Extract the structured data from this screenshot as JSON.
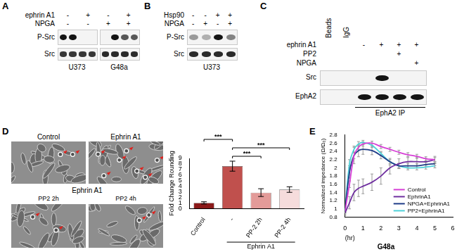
{
  "panels": {
    "A": {
      "label": "A",
      "conditions": [
        {
          "name": "ephrin A1",
          "signs": [
            "-",
            "+",
            "-",
            "+"
          ]
        },
        {
          "name": "NPGA",
          "signs": [
            "-",
            "-",
            "+",
            "+"
          ]
        }
      ],
      "rows": [
        "P-Src",
        "Src"
      ],
      "cell_lines": [
        "U373",
        "G48a"
      ]
    },
    "B": {
      "label": "B",
      "conditions": [
        {
          "name": "Hsp90",
          "signs": [
            "-",
            "-",
            "+",
            "+"
          ]
        },
        {
          "name": "NPGA",
          "signs": [
            "-",
            "+",
            "-",
            "+"
          ]
        }
      ],
      "rows": [
        "P-Src",
        "Src"
      ],
      "cell_lines": [
        "U373"
      ]
    },
    "C": {
      "label": "C",
      "lanes": [
        "Beads",
        "IgG"
      ],
      "conditions": [
        {
          "name": "ephrin A1",
          "signs": [
            null,
            null,
            "-",
            "+",
            "+",
            "+"
          ]
        },
        {
          "name": "PP2",
          "signs": [
            null,
            null,
            null,
            null,
            "+",
            null
          ]
        },
        {
          "name": "NPGA",
          "signs": [
            null,
            null,
            null,
            null,
            null,
            "+"
          ]
        }
      ],
      "rows": [
        "Src",
        "EphA2"
      ],
      "ip": "EphA2 IP"
    },
    "D": {
      "label": "D",
      "top_labels": [
        "Control",
        "Ephrin A1"
      ],
      "group_label": "Ephrin A1",
      "bottom_labels": [
        "PP2 2h",
        "PP2 4h"
      ]
    },
    "E": {
      "label": "E"
    }
  },
  "chart_data": [
    {
      "type": "bar",
      "ylabel": "Fold Change Rounding",
      "categories": [
        "Control",
        "-",
        "PP-2 2h",
        "PP-2 4h"
      ],
      "values": [
        1.0,
        7.6,
        2.85,
        3.4
      ],
      "errors": [
        0.2,
        0.9,
        0.7,
        0.5
      ],
      "colors": [
        "#8b1a1a",
        "#c0504d",
        "#e39b99",
        "#f6dcdc"
      ],
      "ylim": [
        0,
        9
      ],
      "yticks": [
        0,
        1,
        2,
        3,
        4,
        5,
        6,
        7,
        8,
        9
      ],
      "grid": false,
      "group": {
        "label": "Ephrin A1",
        "categories": [
          "-",
          "PP-2 2h",
          "PP-2 4h"
        ]
      },
      "significance": [
        {
          "between": [
            "Control",
            "-"
          ],
          "label": "***"
        },
        {
          "between": [
            "-",
            "PP-2 4h"
          ],
          "label": "***"
        },
        {
          "between": [
            "-",
            "PP-2 2h"
          ],
          "label": "***"
        }
      ]
    },
    {
      "type": "line",
      "title": "G48a",
      "xlabel": "(hr)",
      "ylabel": "Normalized impedance (Ω/Ω₀)",
      "x": [
        0,
        0.25,
        0.5,
        0.75,
        1,
        1.5,
        2,
        2.5,
        3,
        3.5,
        4,
        4.5,
        5
      ],
      "series": [
        {
          "name": "Control",
          "color": "#d63fd6",
          "values": [
            0.95,
            1.6,
            2.3,
            2.5,
            2.58,
            2.6,
            2.52,
            2.45,
            2.38,
            2.32,
            2.28,
            2.22,
            2.2
          ],
          "errors": [
            0.05,
            0.08,
            0.08,
            0.06,
            0.05,
            0.05,
            0.05,
            0.05,
            0.05,
            0.05,
            0.05,
            0.05,
            0.05
          ]
        },
        {
          "name": "EphrinA1",
          "color": "#7030a0",
          "values": [
            0.9,
            1.15,
            1.4,
            1.5,
            1.55,
            1.65,
            1.8,
            2.0,
            2.1,
            2.15,
            2.15,
            2.15,
            2.2
          ],
          "errors": [
            0.05,
            0.15,
            0.2,
            0.2,
            0.18,
            0.2,
            0.2,
            0.15,
            0.12,
            0.1,
            0.1,
            0.08,
            0.08
          ]
        },
        {
          "name": "NPGA+EphrinA1",
          "color": "#1f3c88",
          "values": [
            0.95,
            1.9,
            2.3,
            2.42,
            2.45,
            2.42,
            2.3,
            2.15,
            2.05,
            2.05,
            2.05,
            2.08,
            2.1
          ],
          "errors": [
            0.05,
            0.15,
            0.2,
            0.15,
            0.12,
            0.1,
            0.08,
            0.08,
            0.06,
            0.06,
            0.05,
            0.05,
            0.05
          ]
        },
        {
          "name": "PP2+EphrinA1",
          "color": "#4fd1d9",
          "values": [
            0.95,
            2.1,
            2.45,
            2.58,
            2.62,
            2.55,
            2.35,
            2.15,
            2.05,
            2.0,
            2.0,
            2.02,
            2.05
          ],
          "errors": [
            0.05,
            0.1,
            0.08,
            0.06,
            0.05,
            0.05,
            0.05,
            0.05,
            0.05,
            0.05,
            0.05,
            0.05,
            0.05
          ]
        }
      ],
      "xlim": [
        0,
        6
      ],
      "xticks": [
        0,
        1,
        2,
        3,
        4,
        5,
        6
      ],
      "ylim": [
        0.8,
        2.8
      ],
      "yticks": [
        0.8,
        1,
        1.2,
        1.4,
        1.6,
        1.8,
        2,
        2.2,
        2.4,
        2.6,
        2.8
      ],
      "grid": false,
      "legend": "lower right"
    }
  ]
}
